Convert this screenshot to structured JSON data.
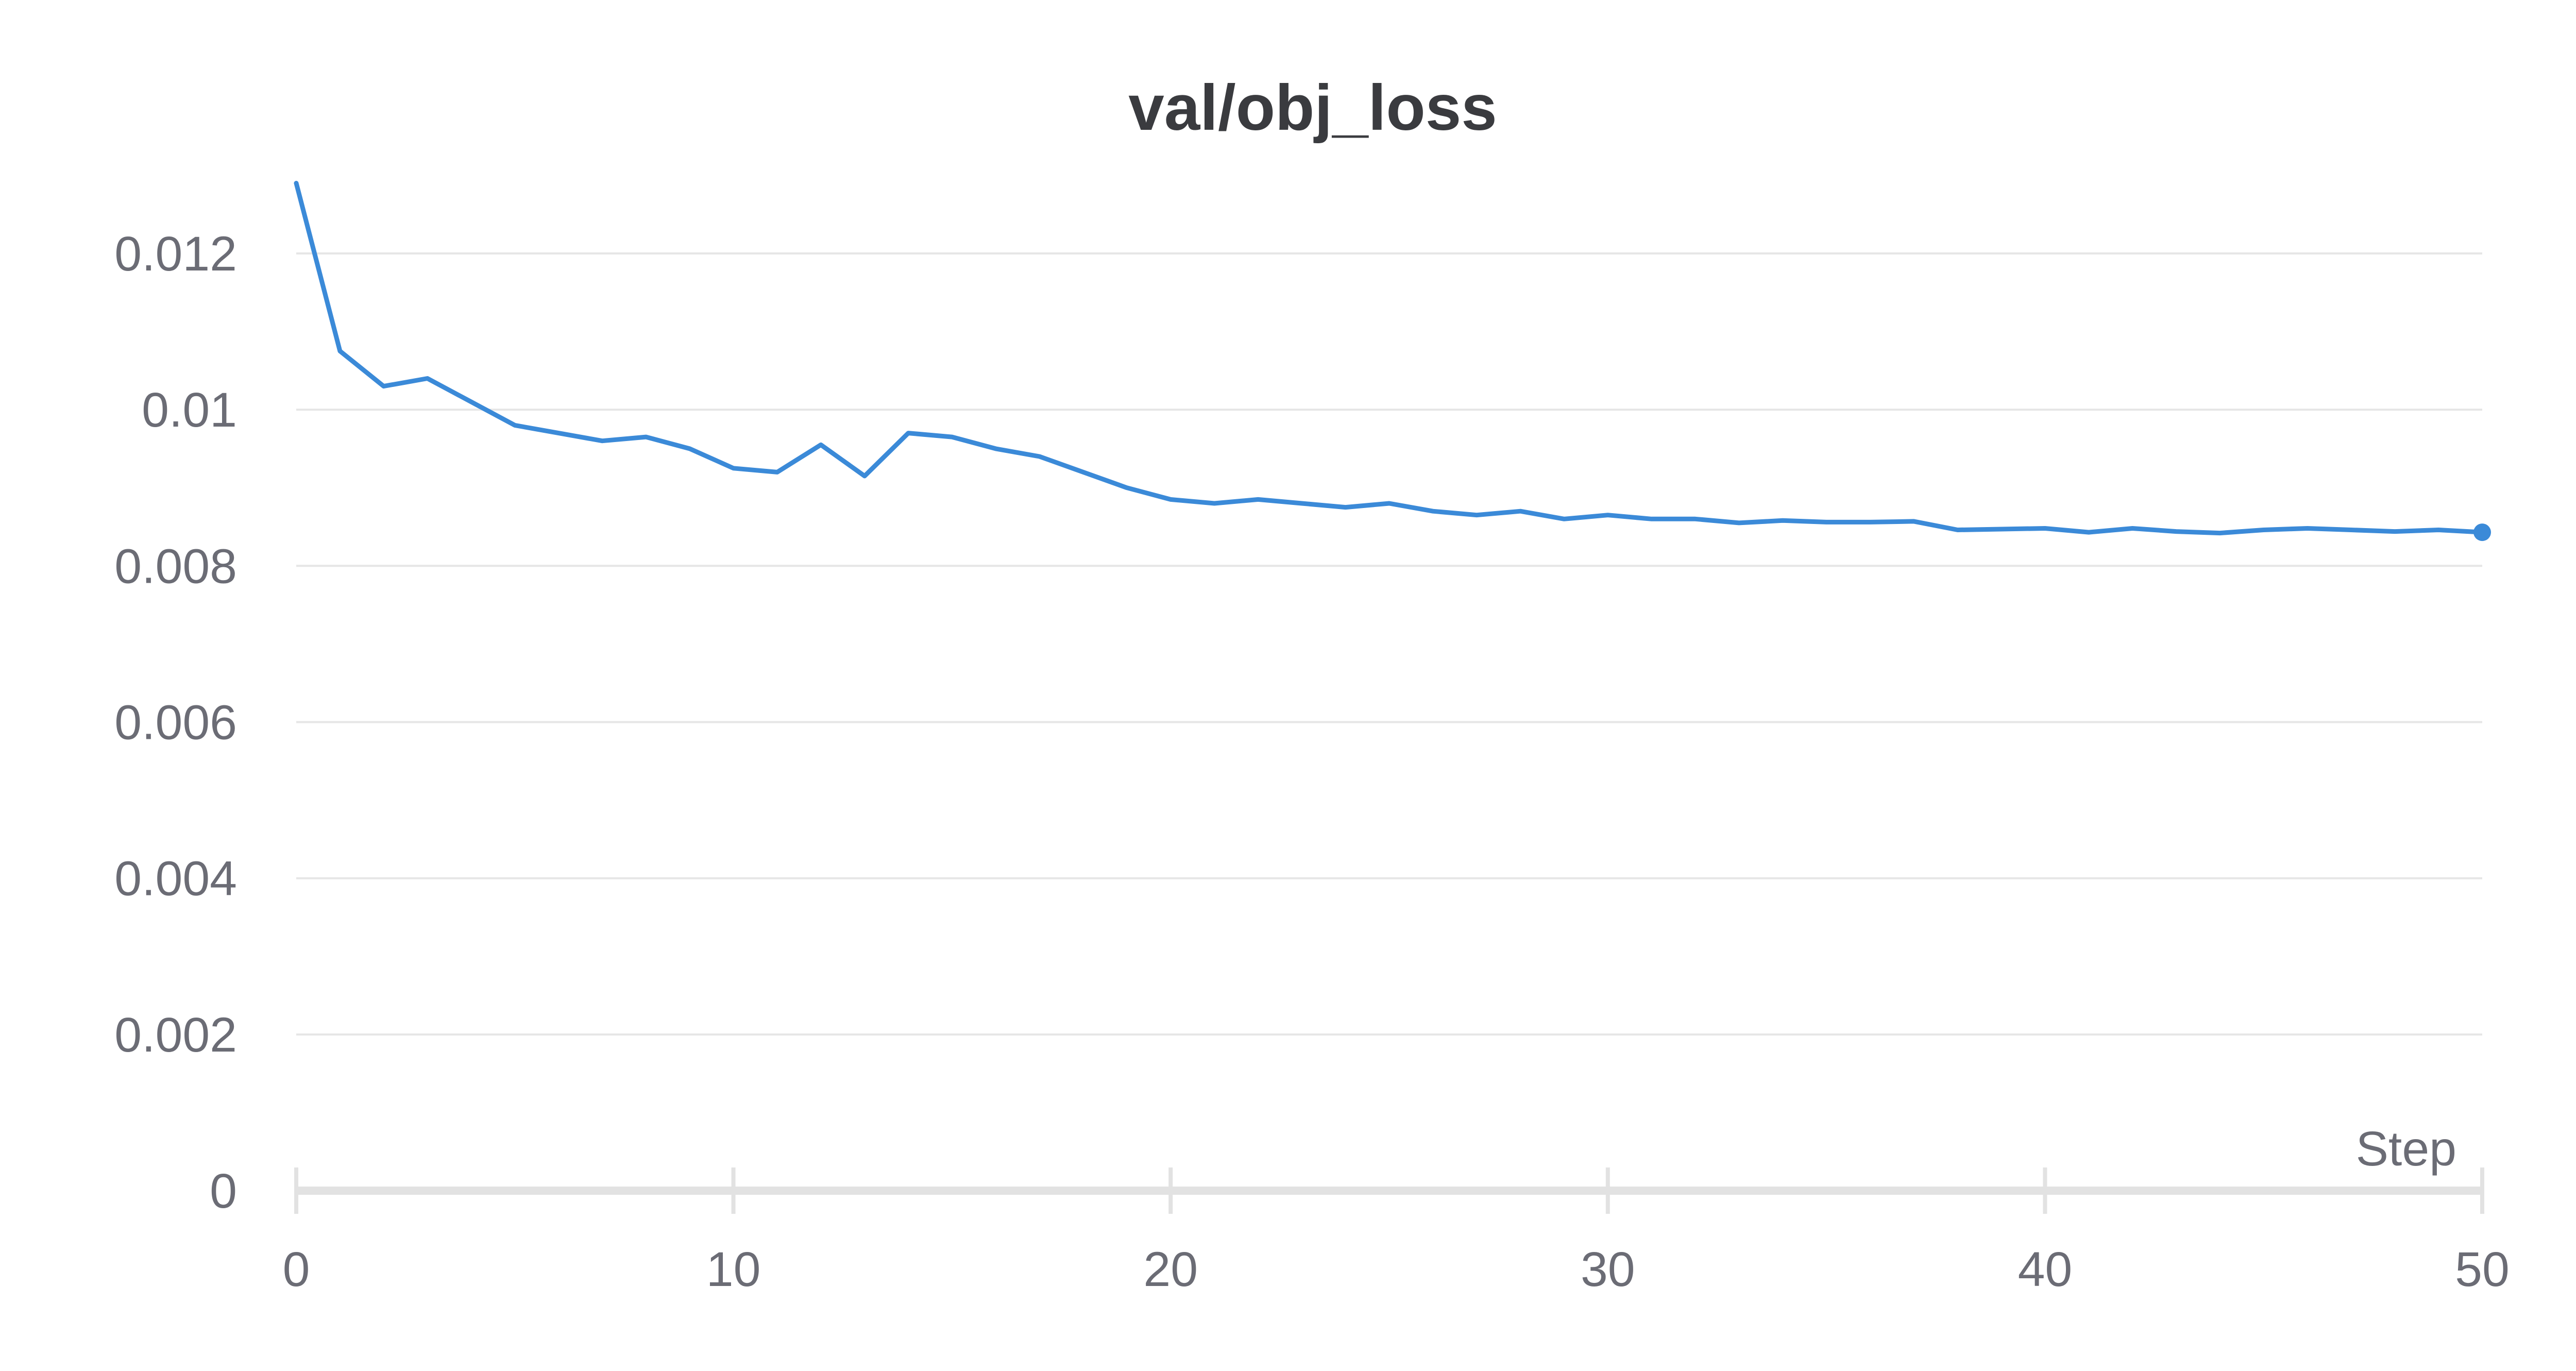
{
  "chart_data": {
    "type": "line",
    "title": "val/obj_loss",
    "xlabel": "Step",
    "ylabel": "",
    "xlim": [
      0,
      50
    ],
    "ylim": [
      0,
      0.0132
    ],
    "x_ticks": [
      0,
      10,
      20,
      30,
      40,
      50
    ],
    "x_tick_labels": [
      "0",
      "10",
      "20",
      "30",
      "40",
      "50"
    ],
    "y_ticks": [
      0,
      0.002,
      0.004,
      0.006,
      0.008,
      0.01,
      0.012
    ],
    "y_tick_labels": [
      "0",
      "0.002",
      "0.004",
      "0.006",
      "0.008",
      "0.01",
      "0.012"
    ],
    "grid": true,
    "legend": "none",
    "series": [
      {
        "color": "#3b8ad8",
        "x": [
          0,
          1,
          2,
          3,
          4,
          5,
          6,
          7,
          8,
          9,
          10,
          11,
          12,
          13,
          14,
          15,
          16,
          17,
          18,
          19,
          20,
          21,
          22,
          23,
          24,
          25,
          26,
          27,
          28,
          29,
          30,
          31,
          32,
          33,
          34,
          35,
          36,
          37,
          38,
          39,
          40,
          41,
          42,
          43,
          44,
          45,
          46,
          47,
          48,
          49,
          50
        ],
        "values": [
          0.0129,
          0.01075,
          0.0103,
          0.0104,
          0.0101,
          0.0098,
          0.0097,
          0.0096,
          0.00965,
          0.0095,
          0.00925,
          0.0092,
          0.00955,
          0.00915,
          0.0097,
          0.00965,
          0.0095,
          0.0094,
          0.0092,
          0.009,
          0.00885,
          0.0088,
          0.00885,
          0.0088,
          0.00875,
          0.0088,
          0.0087,
          0.00865,
          0.0087,
          0.0086,
          0.00865,
          0.0086,
          0.0086,
          0.00855,
          0.00858,
          0.00856,
          0.00856,
          0.00857,
          0.00846,
          0.00847,
          0.00848,
          0.00843,
          0.00848,
          0.00844,
          0.00842,
          0.00846,
          0.00848,
          0.00846,
          0.00844,
          0.00846,
          0.00843
        ]
      }
    ]
  }
}
